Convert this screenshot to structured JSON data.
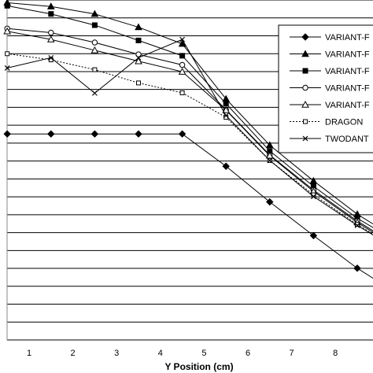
{
  "chart_data": {
    "type": "line",
    "xlabel": "Y Position (cm)",
    "ylabel": "",
    "title": "",
    "xlim": [
      0.5,
      8.85
    ],
    "ylim": [
      0,
      10
    ],
    "grid": "horizontal",
    "y_gridlines": 19,
    "legend_position": "top-right",
    "x_ticks": [
      1,
      2,
      3,
      4,
      5,
      6,
      7,
      8
    ],
    "x": [
      0.5,
      1.5,
      2.5,
      3.5,
      4.5,
      5.5,
      6.5,
      7.5,
      8.5,
      9.0
    ],
    "series": [
      {
        "name": "VARIANT-F",
        "marker": "diamond",
        "dash": "solid",
        "values": [
          6.06,
          6.06,
          6.06,
          6.06,
          6.06,
          5.11,
          4.06,
          3.07,
          2.11,
          1.7
        ]
      },
      {
        "name": "VARIANT-F",
        "marker": "triangle-filled",
        "dash": "solid",
        "values": [
          9.92,
          9.81,
          9.59,
          9.2,
          8.71,
          7.09,
          5.73,
          4.68,
          3.7,
          3.3
        ]
      },
      {
        "name": "VARIANT-F",
        "marker": "square-filled",
        "dash": "solid",
        "values": [
          9.83,
          9.59,
          9.26,
          8.81,
          8.36,
          6.95,
          5.56,
          4.52,
          3.58,
          3.2
        ]
      },
      {
        "name": "VARIANT-F",
        "marker": "circle-open",
        "dash": "solid",
        "values": [
          9.16,
          9.04,
          8.75,
          8.4,
          8.09,
          6.77,
          5.44,
          4.41,
          3.5,
          3.1
        ]
      },
      {
        "name": "VARIANT-F",
        "marker": "triangle-open",
        "dash": "solid",
        "values": [
          9.08,
          8.84,
          8.52,
          8.2,
          7.89,
          6.76,
          5.42,
          4.37,
          3.46,
          3.05
        ]
      },
      {
        "name": "DRAGON",
        "marker": "square-open",
        "dash": "dotted",
        "values": [
          8.42,
          8.24,
          7.95,
          7.56,
          7.27,
          6.55,
          5.28,
          4.27,
          3.4,
          3.0
        ]
      },
      {
        "name": "TWODANT",
        "marker": "x",
        "dash": "solid",
        "values": [
          8.0,
          8.3,
          7.26,
          8.3,
          8.84,
          6.6,
          5.28,
          4.22,
          3.37,
          2.98
        ]
      }
    ]
  }
}
